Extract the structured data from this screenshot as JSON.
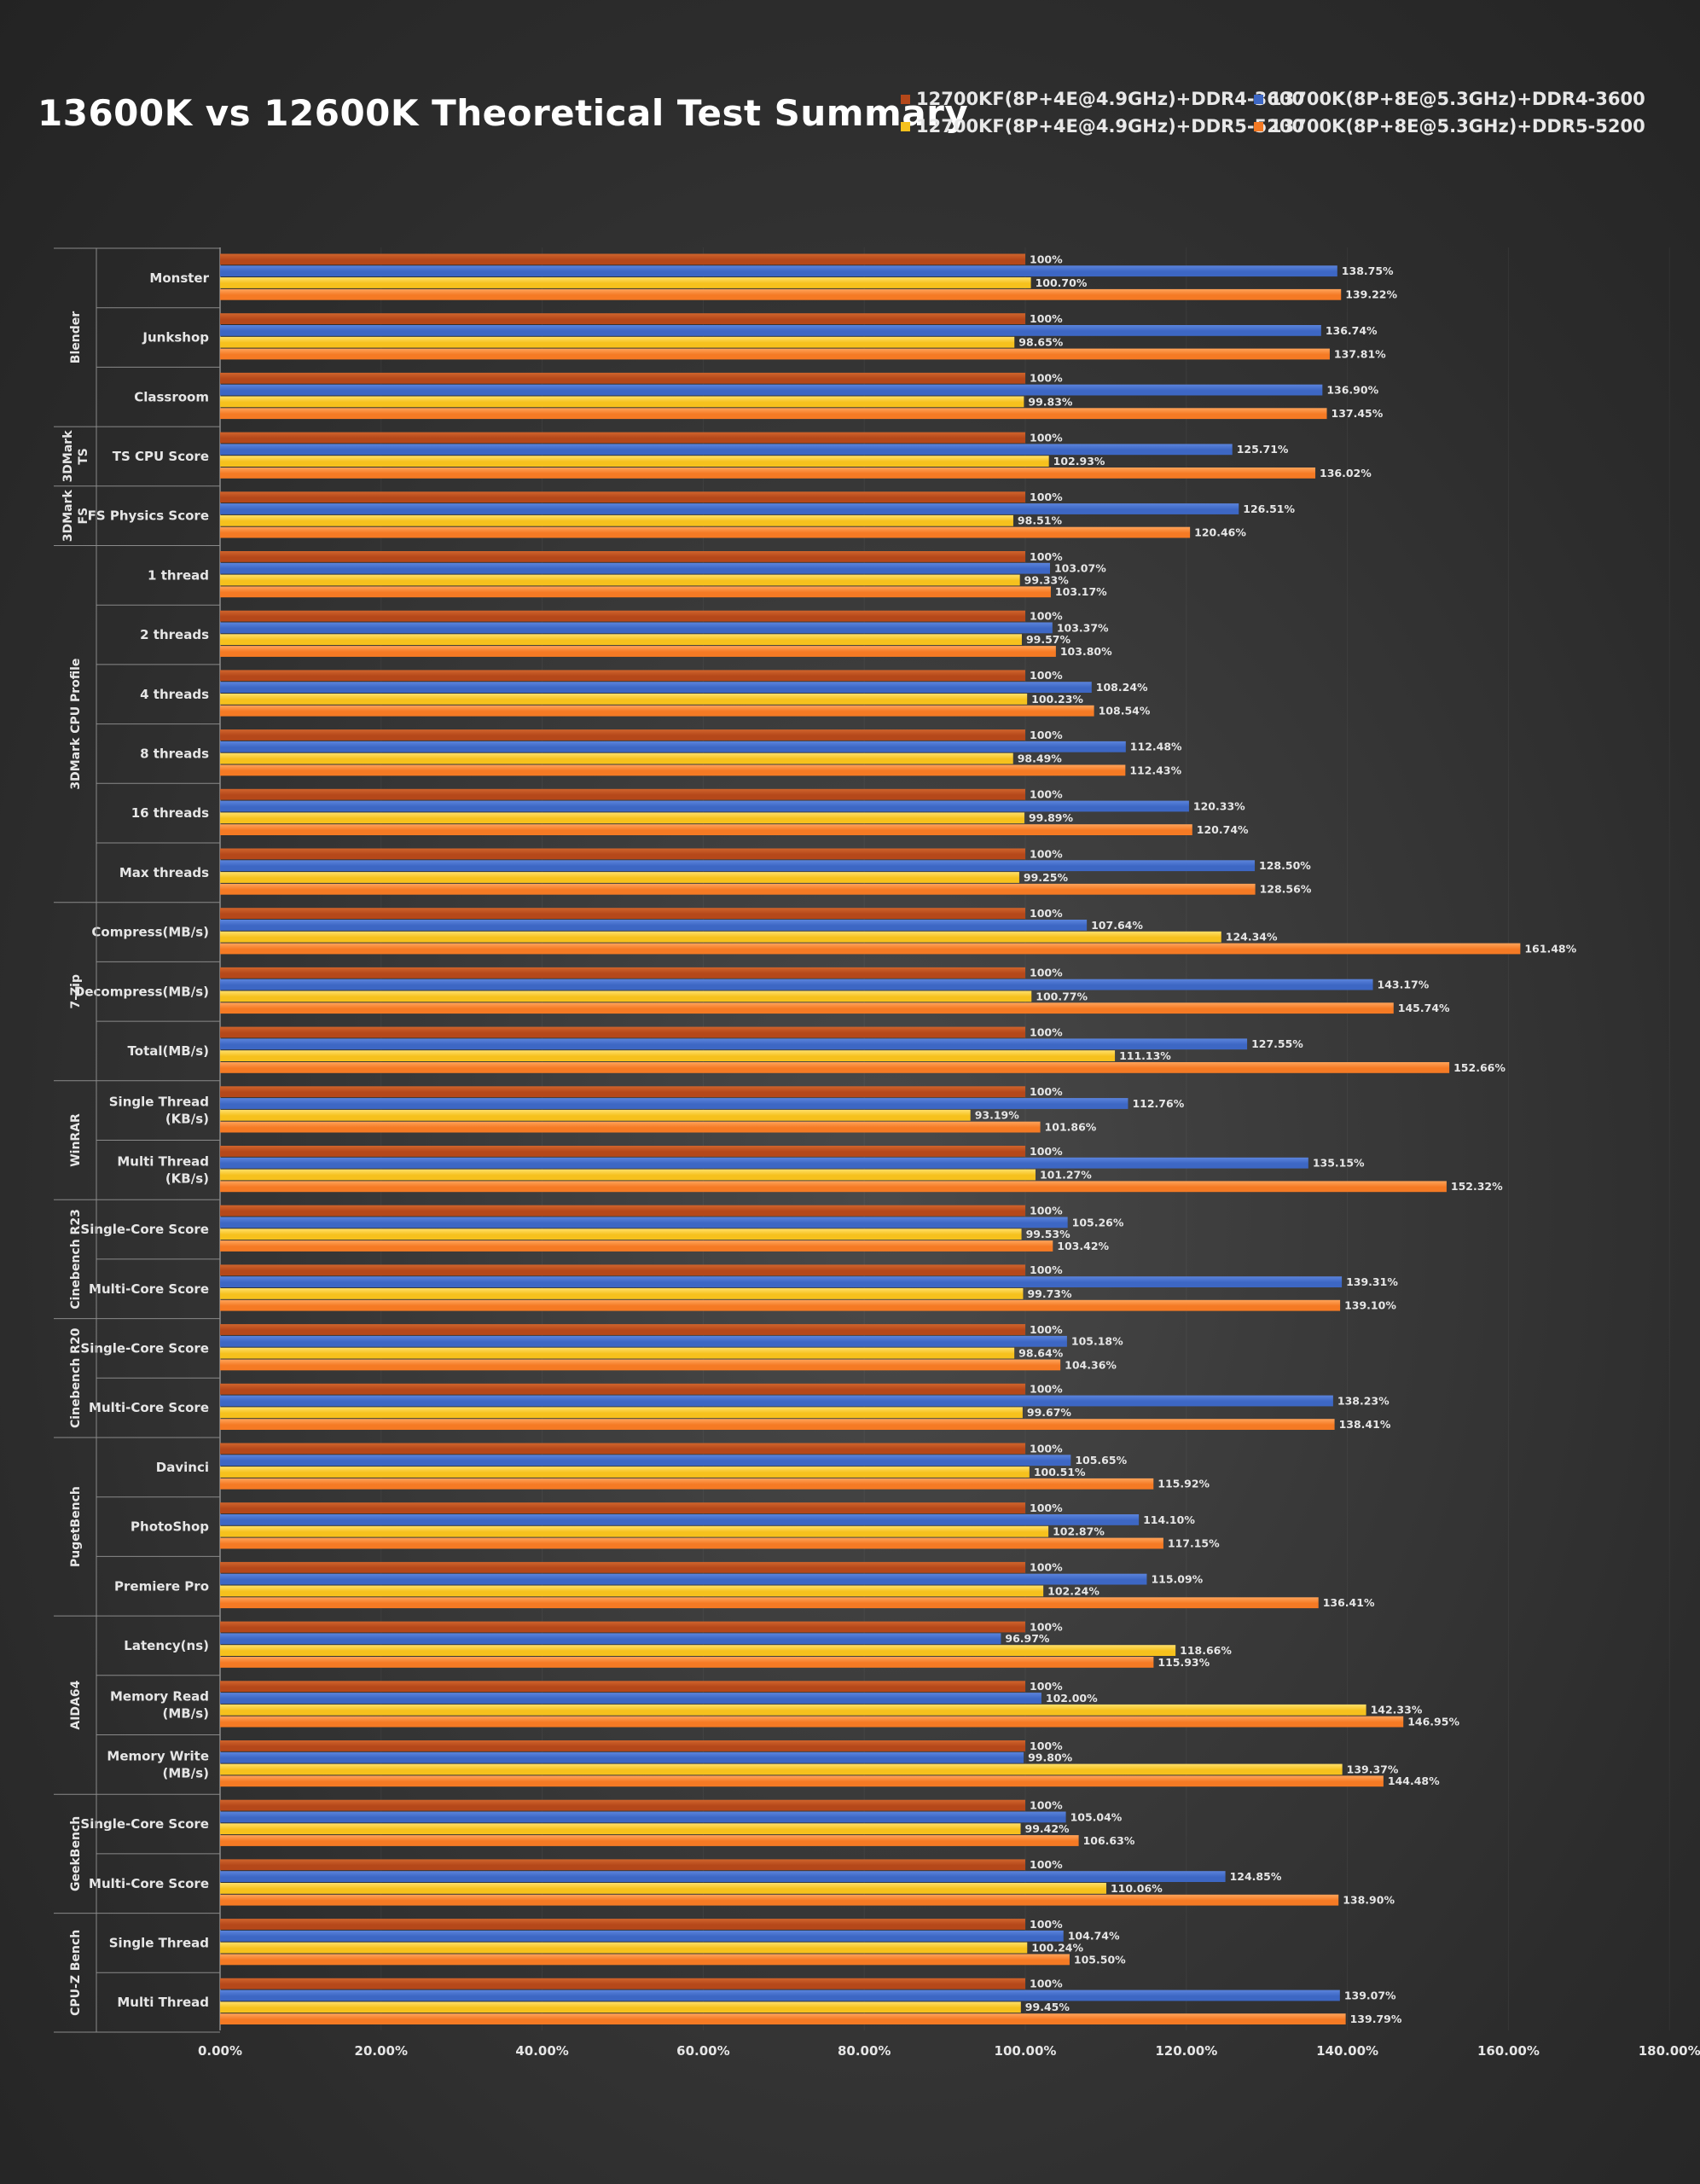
{
  "title": "13600K vs 12600K Theoretical Test Summary",
  "colors": {
    "s0": "#b5481a",
    "s1": "#3d67c4",
    "s2": "#f6c11d",
    "s3": "#f57a24",
    "label_text": "#e6e6e6",
    "axis_line": "#8a8a8a"
  },
  "chart_data": {
    "type": "bar",
    "orientation": "horizontal",
    "title": "13600K vs 12600K Theoretical Test Summary",
    "xlim": [
      0,
      180
    ],
    "xticks": [
      "0.00%",
      "20.00%",
      "40.00%",
      "60.00%",
      "80.00%",
      "100.00%",
      "120.00%",
      "140.00%",
      "160.00%",
      "180.00%"
    ],
    "grid": false,
    "legend_position": "top-right",
    "series": [
      {
        "name": "12700KF(8P+4E@4.9GHz)+DDR4-3600"
      },
      {
        "name": "13700K(8P+8E@5.3GHz)+DDR4-3600"
      },
      {
        "name": "12700KF(8P+4E@4.9GHz)+DDR5-5200"
      },
      {
        "name": "13700K(8P+8E@5.3GHz)+DDR5-5200"
      }
    ],
    "groups": [
      {
        "name": "Blender",
        "categories": [
          {
            "label": "Monster",
            "values": [
              100,
              138.75,
              100.7,
              139.22
            ],
            "labels": [
              "100%",
              "138.75%",
              "100.70%",
              "139.22%"
            ]
          },
          {
            "label": "Junkshop",
            "values": [
              100,
              136.74,
              98.65,
              137.81
            ],
            "labels": [
              "100%",
              "136.74%",
              "98.65%",
              "137.81%"
            ]
          },
          {
            "label": "Classroom",
            "values": [
              100,
              136.9,
              99.83,
              137.45
            ],
            "labels": [
              "100%",
              "136.90%",
              "99.83%",
              "137.45%"
            ]
          }
        ]
      },
      {
        "name": "3DMark TS",
        "categories": [
          {
            "label": "TS CPU Score",
            "values": [
              100,
              125.71,
              102.93,
              136.02
            ],
            "labels": [
              "100%",
              "125.71%",
              "102.93%",
              "136.02%"
            ]
          }
        ]
      },
      {
        "name": "3DMark FS",
        "categories": [
          {
            "label": "FS Physics Score",
            "values": [
              100,
              126.51,
              98.51,
              120.46
            ],
            "labels": [
              "100%",
              "126.51%",
              "98.51%",
              "120.46%"
            ]
          }
        ]
      },
      {
        "name": "3DMark CPU Profile",
        "categories": [
          {
            "label": "1 thread",
            "values": [
              100,
              103.07,
              99.33,
              103.17
            ],
            "labels": [
              "100%",
              "103.07%",
              "99.33%",
              "103.17%"
            ]
          },
          {
            "label": "2 threads",
            "values": [
              100,
              103.37,
              99.57,
              103.8
            ],
            "labels": [
              "100%",
              "103.37%",
              "99.57%",
              "103.80%"
            ]
          },
          {
            "label": "4 threads",
            "values": [
              100,
              108.24,
              100.23,
              108.54
            ],
            "labels": [
              "100%",
              "108.24%",
              "100.23%",
              "108.54%"
            ]
          },
          {
            "label": "8 threads",
            "values": [
              100,
              112.48,
              98.49,
              112.43
            ],
            "labels": [
              "100%",
              "112.48%",
              "98.49%",
              "112.43%"
            ]
          },
          {
            "label": "16 threads",
            "values": [
              100,
              120.33,
              99.89,
              120.74
            ],
            "labels": [
              "100%",
              "120.33%",
              "99.89%",
              "120.74%"
            ]
          },
          {
            "label": "Max threads",
            "values": [
              100,
              128.5,
              99.25,
              128.56
            ],
            "labels": [
              "100%",
              "128.50%",
              "99.25%",
              "128.56%"
            ]
          }
        ]
      },
      {
        "name": "7-Zip",
        "categories": [
          {
            "label": "Compress(MB/s)",
            "values": [
              100,
              107.64,
              124.34,
              161.48
            ],
            "labels": [
              "100%",
              "107.64%",
              "124.34%",
              "161.48%"
            ]
          },
          {
            "label": "Decompress(MB/s)",
            "values": [
              100,
              143.17,
              100.77,
              145.74
            ],
            "labels": [
              "100%",
              "143.17%",
              "100.77%",
              "145.74%"
            ]
          },
          {
            "label": "Total(MB/s)",
            "values": [
              100,
              127.55,
              111.13,
              152.66
            ],
            "labels": [
              "100%",
              "127.55%",
              "111.13%",
              "152.66%"
            ]
          }
        ]
      },
      {
        "name": "WinRAR",
        "categories": [
          {
            "label": "Single Thread (KB/s)",
            "values": [
              100,
              112.76,
              93.19,
              101.86
            ],
            "labels": [
              "100%",
              "112.76%",
              "93.19%",
              "101.86%"
            ]
          },
          {
            "label": "Multi Thread (KB/s)",
            "values": [
              100,
              135.15,
              101.27,
              152.32
            ],
            "labels": [
              "100%",
              "135.15%",
              "101.27%",
              "152.32%"
            ]
          }
        ]
      },
      {
        "name": "Cinebench R23",
        "categories": [
          {
            "label": "Single-Core Score",
            "values": [
              100,
              105.26,
              99.53,
              103.42
            ],
            "labels": [
              "100%",
              "105.26%",
              "99.53%",
              "103.42%"
            ]
          },
          {
            "label": "Multi-Core Score",
            "values": [
              100,
              139.31,
              99.73,
              139.1
            ],
            "labels": [
              "100%",
              "139.31%",
              "99.73%",
              "139.10%"
            ]
          }
        ]
      },
      {
        "name": "Cinebench R20",
        "categories": [
          {
            "label": "Single-Core Score",
            "values": [
              100,
              105.18,
              98.64,
              104.36
            ],
            "labels": [
              "100%",
              "105.18%",
              "98.64%",
              "104.36%"
            ]
          },
          {
            "label": "Multi-Core Score",
            "values": [
              100,
              138.23,
              99.67,
              138.41
            ],
            "labels": [
              "100%",
              "138.23%",
              "99.67%",
              "138.41%"
            ]
          }
        ]
      },
      {
        "name": "PugetBench",
        "categories": [
          {
            "label": "Davinci",
            "values": [
              100,
              105.65,
              100.51,
              115.92
            ],
            "labels": [
              "100%",
              "105.65%",
              "100.51%",
              "115.92%"
            ]
          },
          {
            "label": "PhotoShop",
            "values": [
              100,
              114.1,
              102.87,
              117.15
            ],
            "labels": [
              "100%",
              "114.10%",
              "102.87%",
              "117.15%"
            ]
          },
          {
            "label": "Premiere Pro",
            "values": [
              100,
              115.09,
              102.24,
              136.41
            ],
            "labels": [
              "100%",
              "115.09%",
              "102.24%",
              "136.41%"
            ]
          }
        ]
      },
      {
        "name": "AIDA64",
        "categories": [
          {
            "label": "Latency(ns)",
            "values": [
              100,
              96.97,
              118.66,
              115.93
            ],
            "labels": [
              "100%",
              "96.97%",
              "118.66%",
              "115.93%"
            ]
          },
          {
            "label": "Memory Read (MB/s)",
            "values": [
              100,
              102.0,
              142.33,
              146.95
            ],
            "labels": [
              "100%",
              "102.00%",
              "142.33%",
              "146.95%"
            ]
          },
          {
            "label": "Memory Write (MB/s)",
            "values": [
              100,
              99.8,
              139.37,
              144.48
            ],
            "labels": [
              "100%",
              "99.80%",
              "139.37%",
              "144.48%"
            ]
          }
        ]
      },
      {
        "name": "GeekBench",
        "categories": [
          {
            "label": "Single-Core Score",
            "values": [
              100,
              105.04,
              99.42,
              106.63
            ],
            "labels": [
              "100%",
              "105.04%",
              "99.42%",
              "106.63%"
            ]
          },
          {
            "label": "Multi-Core Score",
            "values": [
              100,
              124.85,
              110.06,
              138.9
            ],
            "labels": [
              "100%",
              "124.85%",
              "110.06%",
              "138.90%"
            ]
          }
        ]
      },
      {
        "name": "CPU-Z Bench",
        "categories": [
          {
            "label": "Single Thread",
            "values": [
              100,
              104.74,
              100.24,
              105.5
            ],
            "labels": [
              "100%",
              "104.74%",
              "100.24%",
              "105.50%"
            ]
          },
          {
            "label": "Multi Thread",
            "values": [
              100,
              139.07,
              99.45,
              139.79
            ],
            "labels": [
              "100%",
              "139.07%",
              "99.45%",
              "139.79%"
            ]
          }
        ]
      }
    ]
  }
}
